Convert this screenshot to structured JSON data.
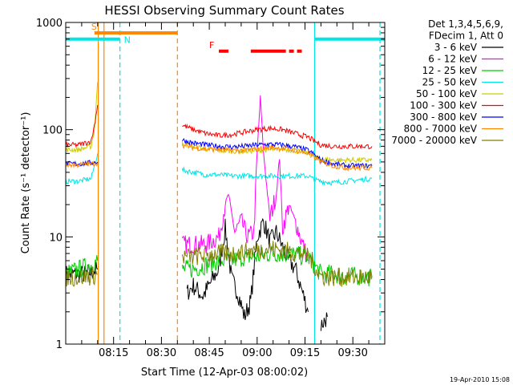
{
  "chart_data": {
    "type": "line",
    "title": "HESSI Observing Summary Count Rates",
    "xlabel": "Start Time (12-Apr-03 08:00:02)",
    "ylabel": "Count Rate (s⁻¹ detector⁻¹)",
    "yscale": "log",
    "ylim": [
      1,
      1000
    ],
    "xlim_minutes": [
      0,
      100
    ],
    "x_ticks": [
      {
        "t": 15,
        "label": "08:15"
      },
      {
        "t": 30,
        "label": "08:30"
      },
      {
        "t": 45,
        "label": "08:45"
      },
      {
        "t": 60,
        "label": "09:00"
      },
      {
        "t": 75,
        "label": "09:15"
      },
      {
        "t": 90,
        "label": "09:30"
      }
    ],
    "y_ticks": [
      {
        "v": 1,
        "label": "1"
      },
      {
        "v": 10,
        "label": "10"
      },
      {
        "v": 100,
        "label": "100"
      },
      {
        "v": 1000,
        "label": "1000"
      }
    ],
    "legend": {
      "position": "right",
      "header": [
        "Det 1,3,4,5,6,9,",
        "FDecim 1, Att 0"
      ],
      "entries": [
        {
          "label": "3 - 6 keV",
          "color": "#000000"
        },
        {
          "label": "6 - 12 keV",
          "color": "#ff00ff"
        },
        {
          "label": "12 - 25 keV",
          "color": "#00cc00"
        },
        {
          "label": "25 - 50 keV",
          "color": "#00e5e5"
        },
        {
          "label": "50 - 100 keV",
          "color": "#cccc00"
        },
        {
          "label": "100 - 300 keV",
          "color": "#ff0000"
        },
        {
          "label": "300 - 800 keV",
          "color": "#0000ff"
        },
        {
          "label": "800 - 7000 keV",
          "color": "#ff8800"
        },
        {
          "label": "7000 - 20000 keV",
          "color": "#808000"
        }
      ]
    },
    "series": [
      {
        "name": "3 - 6 keV",
        "color": "#000000",
        "x": [
          0,
          6,
          10,
          10.1,
          36.5,
          38,
          40,
          43,
          46,
          48,
          50,
          52,
          54,
          56,
          58,
          60,
          62,
          64,
          66,
          68,
          70,
          72,
          74,
          76,
          76.1,
          80,
          82
        ],
        "y": [
          4.5,
          4.5,
          5,
          null,
          null,
          3,
          3.5,
          2.8,
          4,
          5,
          12,
          4,
          3,
          1.8,
          2.5,
          10,
          14,
          9,
          11,
          8,
          6,
          5,
          3.2,
          2,
          null,
          1.5,
          1.8
        ]
      },
      {
        "name": "6 - 12 keV",
        "color": "#ff00ff",
        "x": [
          36.5,
          40,
          44,
          48,
          50,
          51,
          53,
          55,
          57,
          59,
          60,
          61,
          62,
          64,
          66,
          67,
          68,
          70,
          72,
          74,
          76
        ],
        "y": [
          8.5,
          8.5,
          8.5,
          10,
          20,
          25,
          11,
          14,
          10,
          11,
          60,
          200,
          60,
          15,
          25,
          55,
          12,
          20,
          14,
          9,
          6
        ]
      },
      {
        "name": "12 - 25 keV",
        "color": "#00cc00",
        "x": [
          0,
          8,
          10,
          10.1,
          36.5,
          40,
          44,
          48,
          52,
          56,
          60,
          64,
          68,
          72,
          76,
          80,
          84,
          88,
          92,
          96
        ],
        "y": [
          4.5,
          5.5,
          6,
          null,
          5,
          5,
          5.5,
          6,
          6,
          6.5,
          6.5,
          7,
          7,
          6.8,
          6.5,
          4.5,
          4.5,
          4.3,
          4.3,
          4.2
        ]
      },
      {
        "name": "25 - 50 keV",
        "color": "#00e5e5",
        "x": [
          0,
          4,
          8,
          10,
          10.1,
          36.5,
          40,
          44,
          48,
          52,
          56,
          60,
          64,
          68,
          72,
          76,
          78,
          80,
          84,
          88,
          92,
          96
        ],
        "y": [
          33,
          33,
          35,
          60,
          null,
          42,
          40,
          38,
          38,
          37,
          37,
          37,
          37,
          37,
          37,
          37,
          34,
          33,
          32,
          33,
          34,
          35
        ]
      },
      {
        "name": "50 - 100 keV",
        "color": "#cccc00",
        "x": [
          0,
          4,
          8,
          9,
          10,
          10.1,
          36.5,
          40,
          44,
          48,
          52,
          56,
          60,
          64,
          68,
          72,
          76,
          78,
          80,
          84,
          88,
          92,
          96
        ],
        "y": [
          65,
          65,
          70,
          100,
          280,
          null,
          75,
          70,
          66,
          64,
          63,
          63,
          64,
          65,
          66,
          64,
          60,
          55,
          53,
          52,
          52,
          52,
          52
        ]
      },
      {
        "name": "100 - 300 keV",
        "color": "#ff0000",
        "x": [
          0,
          4,
          8,
          9,
          10,
          10.1,
          36.5,
          40,
          44,
          48,
          52,
          56,
          60,
          64,
          68,
          72,
          76,
          78,
          80,
          84,
          88,
          92,
          96
        ],
        "y": [
          72,
          72,
          78,
          110,
          170,
          null,
          110,
          100,
          92,
          88,
          90,
          95,
          100,
          103,
          100,
          92,
          85,
          78,
          72,
          70,
          70,
          70,
          70
        ]
      },
      {
        "name": "300 - 800 keV",
        "color": "#0000ff",
        "x": [
          0,
          4,
          8,
          10,
          10.1,
          36.5,
          40,
          44,
          48,
          52,
          56,
          60,
          64,
          68,
          72,
          76,
          78,
          80,
          84,
          88,
          92,
          96
        ],
        "y": [
          48,
          48,
          49,
          50,
          null,
          80,
          75,
          72,
          70,
          69,
          70,
          72,
          73,
          72,
          69,
          64,
          58,
          52,
          48,
          46,
          46,
          46
        ]
      },
      {
        "name": "800 - 7000 keV",
        "color": "#ff8800",
        "x": [
          0,
          4,
          8,
          10,
          10.1,
          36.5,
          40,
          44,
          48,
          52,
          56,
          60,
          64,
          68,
          72,
          76,
          78,
          80,
          84,
          88,
          92,
          96
        ],
        "y": [
          47,
          47,
          48,
          49,
          null,
          72,
          68,
          66,
          65,
          64,
          64,
          66,
          68,
          67,
          64,
          60,
          55,
          50,
          46,
          44,
          44,
          44
        ]
      },
      {
        "name": "7000 - 20000 keV",
        "color": "#808000",
        "x": [
          0,
          4,
          8,
          10,
          10.1,
          36.5,
          40,
          44,
          48,
          52,
          56,
          60,
          64,
          68,
          72,
          76,
          80,
          84,
          88,
          92,
          96
        ],
        "y": [
          4.2,
          4.2,
          4.3,
          4.5,
          null,
          6.5,
          6.5,
          6.8,
          7,
          7,
          7.2,
          7.5,
          7.8,
          7.5,
          7.2,
          6.8,
          4.3,
          4.2,
          4.2,
          4.2,
          4.2
        ]
      }
    ],
    "flags": [
      {
        "label": "S",
        "color": "#ff8800",
        "y": 800,
        "start": 9,
        "end": 35
      },
      {
        "label": "N",
        "color": "#00e5e5",
        "y": 700,
        "start": 0,
        "end": 17
      },
      {
        "label": "F",
        "color": "#ff0000",
        "y": 540,
        "segments": [
          [
            48,
            51
          ],
          [
            58,
            69
          ],
          [
            70,
            71.5
          ],
          [
            72.5,
            74
          ]
        ]
      }
    ],
    "n_extra_segment": {
      "color": "#00e5e5",
      "y": 700,
      "start": 78,
      "end": 100
    },
    "vertical_lines": [
      {
        "t": 10.2,
        "color": "#ff8800",
        "style": "solid"
      },
      {
        "t": 12,
        "color": "#ff8800",
        "style": "solid"
      },
      {
        "t": 17,
        "color": "#00e5e5",
        "style": "dashed"
      },
      {
        "t": 35,
        "color": "#ff8800",
        "style": "dashed"
      },
      {
        "t": 78,
        "color": "#00e5e5",
        "style": "solid"
      },
      {
        "t": 98.5,
        "color": "#00e5e5",
        "style": "dashed"
      }
    ],
    "footer_date": "19-Apr-2010 15:08"
  }
}
